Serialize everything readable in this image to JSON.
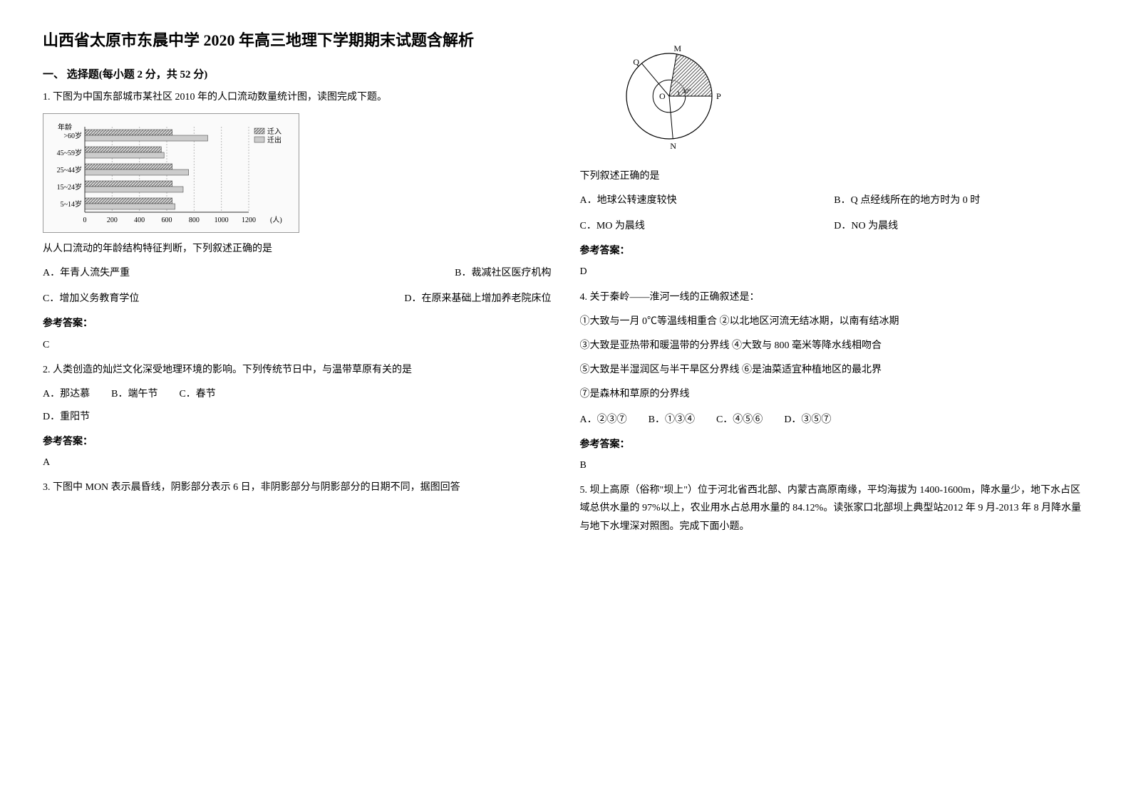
{
  "doc_title": "山西省太原市东晨中学 2020 年高三地理下学期期末试题含解析",
  "section_one": "一、 选择题(每小题 2 分，共 52 分)",
  "q1": {
    "text": "1. 下图为中国东部城市某社区 2010 年的人口流动数量统计图，读图完成下题。",
    "judge_text": "从人口流动的年龄结构特征判断，下列叙述正确的是",
    "optA": "A．年青人流失严重",
    "optB": "B．裁减社区医疗机构",
    "optC": "C．增加义务教育学位",
    "optD": "D．在原来基础上增加养老院床位",
    "answer_label": "参考答案：",
    "answer": "C"
  },
  "q1_chart": {
    "y_categories": [
      "年龄",
      ">60岁",
      "45~59岁",
      "25~44岁",
      "15~24岁",
      "5~14岁"
    ],
    "x_ticks": [
      0,
      200,
      400,
      600,
      800,
      1000,
      1200
    ],
    "x_unit": "(人)",
    "legend": [
      "迁入",
      "迁出"
    ],
    "in_values": [
      640,
      560,
      640,
      640,
      640
    ],
    "out_values": [
      900,
      580,
      760,
      720,
      660
    ],
    "in_color": "#888888",
    "out_color": "#cccccc",
    "in_pattern": "hatch",
    "bg": "#fafafa",
    "border": "#333333"
  },
  "q2": {
    "text": "2. 人类创造的灿烂文化深受地理环境的影响。下列传统节日中，与温带草原有关的是",
    "optA": "A．那达慕",
    "optB": "B．端午节",
    "optC": "C．春节",
    "optD": "D．重阳节",
    "answer_label": "参考答案：",
    "answer": "A"
  },
  "q3": {
    "text": "3. 下图中 MON 表示晨昏线，阴影部分表示 6 日，非阴影部分与阴影部分的日期不同，据图回答",
    "judge_text": "下列叙述正确的是",
    "optA": "A．地球公转速度较快",
    "optB": "B．Q 点经线所在的地方时为 0 时",
    "optC": "C．MO 为晨线",
    "optD": "D．NO 为晨线",
    "answer_label": "参考答案：",
    "answer": "D"
  },
  "q3_diagram": {
    "labels": {
      "M": "M",
      "N": "N",
      "O": "O",
      "P": "P",
      "Q": "Q"
    },
    "angle_label": "30°",
    "stroke": "#000000",
    "hatch_color": "#555555"
  },
  "q4": {
    "text": "4. 关于秦岭——淮河一线的正确叙述是：",
    "s1": "①大致与一月 0℃等温线相重合 ②以北地区河流无结冰期，以南有结冰期",
    "s2": "③大致是亚热带和暖温带的分界线  ④大致与 800 毫米等降水线相吻合",
    "s3": "⑤大致是半湿润区与半干旱区分界线  ⑥是油菜适宜种植地区的最北界",
    "s4": "⑦是森林和草原的分界线",
    "optA": "A．②③⑦",
    "optB": "B．①③④",
    "optC": "C．④⑤⑥",
    "optD": "D．③⑤⑦",
    "answer_label": "参考答案：",
    "answer": "B"
  },
  "q5": {
    "text": "5. 坝上高原（俗称\"坝上\"）位于河北省西北部、内蒙古高原南缘，平均海拔为 1400-1600m，降水量少，地下水占区域总供水量的 97%以上，农业用水占总用水量的 84.12%。读张家口北部坝上典型站2012 年 9 月-2013 年 8 月降水量与地下水埋深对照图。完成下面小题。"
  }
}
